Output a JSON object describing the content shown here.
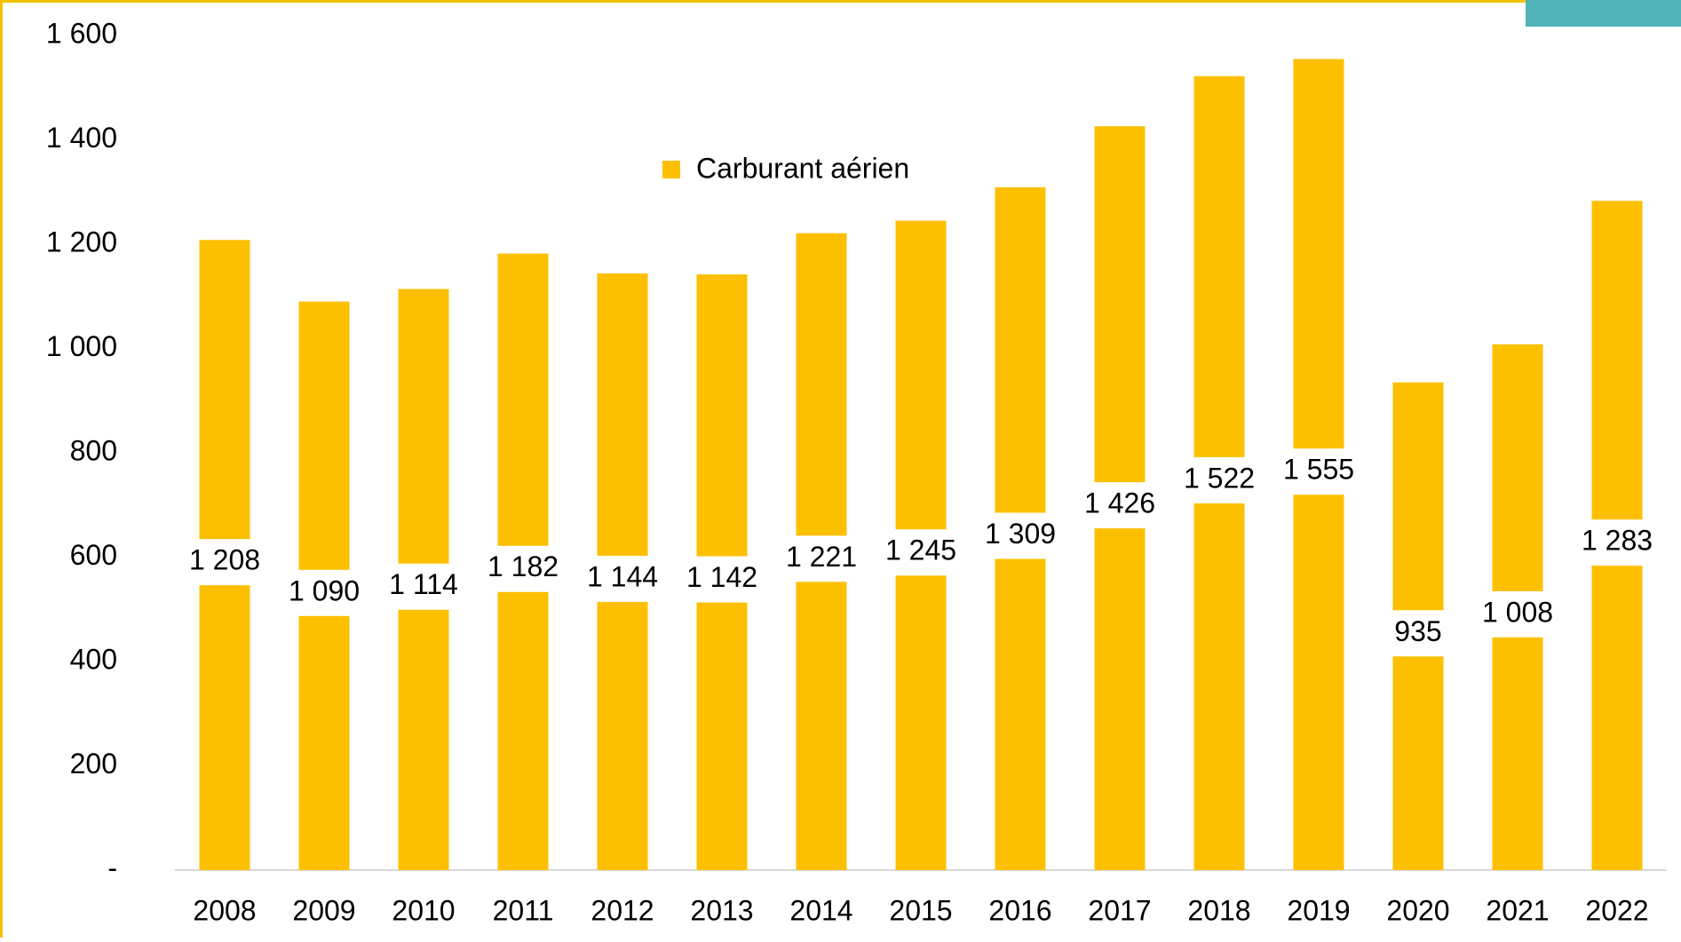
{
  "chart_data": {
    "type": "bar",
    "categories": [
      "2008",
      "2009",
      "2010",
      "2011",
      "2012",
      "2013",
      "2014",
      "2015",
      "2016",
      "2017",
      "2018",
      "2019",
      "2020",
      "2021",
      "2022"
    ],
    "series": [
      {
        "name": "Carburant aérien",
        "color": "#fdc000",
        "values": [
          1208,
          1090,
          1114,
          1182,
          1144,
          1142,
          1221,
          1245,
          1309,
          1426,
          1522,
          1555,
          935,
          1008,
          1283
        ],
        "value_labels": [
          "1 208",
          "1 090",
          "1 114",
          "1 182",
          "1 144",
          "1 142",
          "1 221",
          "1 245",
          "1 309",
          "1 426",
          "1 522",
          "1 555",
          "935",
          "1 008",
          "1 283"
        ]
      }
    ],
    "ylim": [
      0,
      1600
    ],
    "yticks": [
      {
        "value": 0,
        "label": "-"
      },
      200,
      400,
      600,
      800,
      {
        "value": 1000,
        "label": "1 000"
      },
      {
        "value": 1200,
        "label": "1 200"
      },
      {
        "value": 1400,
        "label": "1 400"
      },
      {
        "value": 1600,
        "label": "1 600"
      }
    ],
    "grid": false
  }
}
